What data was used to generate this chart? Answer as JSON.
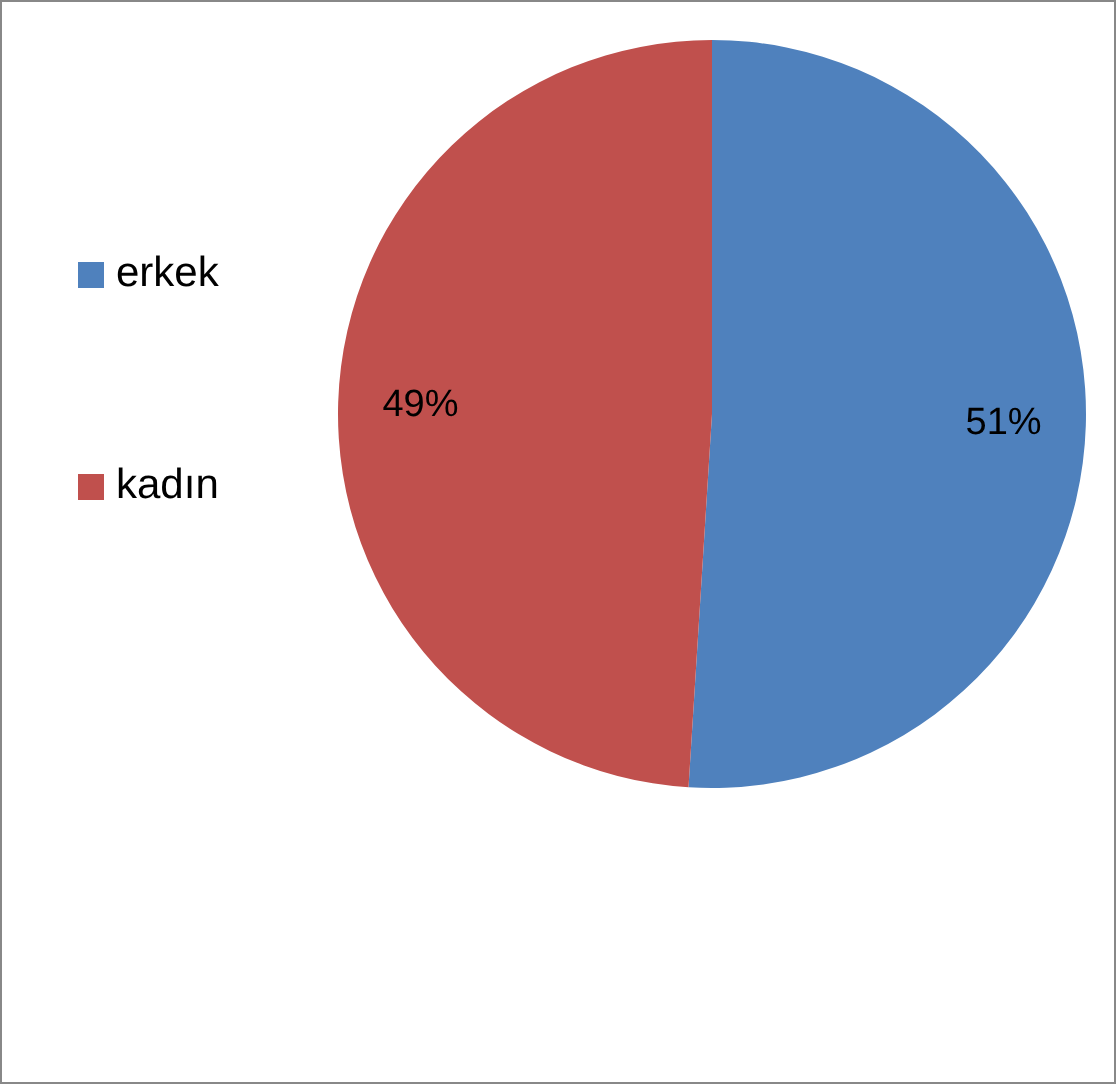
{
  "chart_data": {
    "type": "pie",
    "categories": [
      "erkek",
      "kadın"
    ],
    "values": [
      51,
      49
    ],
    "colors": [
      "#4f81bd",
      "#c0504d"
    ],
    "value_labels": [
      "51%",
      "49%"
    ],
    "legend": "left"
  }
}
